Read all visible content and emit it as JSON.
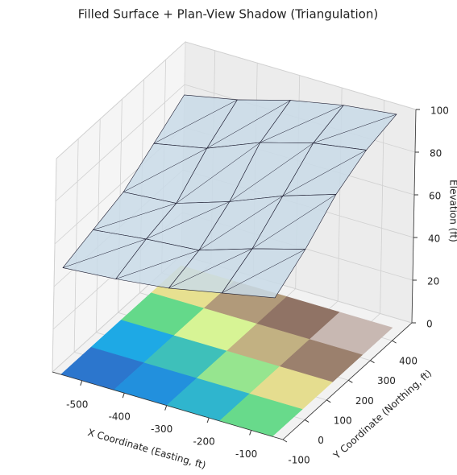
{
  "chart_data": {
    "type": "surface3d",
    "title": "Filled Surface + Plan-View Shadow (Triangulation)",
    "xlabel": "X Coordinate (Easting, ft)",
    "ylabel": "Y Coordinate (Northing, ft)",
    "zlabel": "Elevation (ft)",
    "x": [
      -550,
      -425,
      -300,
      -175,
      -50
    ],
    "y": [
      -100,
      37.5,
      175,
      312.5,
      450
    ],
    "z": [
      [
        50,
        52,
        55,
        60,
        65
      ],
      [
        55,
        58,
        60,
        68,
        75
      ],
      [
        60,
        62,
        70,
        80,
        88
      ],
      [
        70,
        75,
        85,
        92,
        96
      ],
      [
        80,
        85,
        92,
        97,
        100
      ]
    ],
    "xlim": [
      -570,
      -25
    ],
    "ylim": [
      -100,
      490
    ],
    "zlim": [
      0,
      100
    ],
    "xticks": [
      -500,
      -400,
      -300,
      -200,
      -100
    ],
    "yticks": [
      -100,
      0,
      100,
      200,
      300,
      400
    ],
    "zticks": [
      0,
      20,
      40,
      60,
      80,
      100
    ],
    "surface_color": "#c9dbe8",
    "edge_color": "#1a1a2e",
    "colormap": [
      "#3a4fb5",
      "#1aa6ea",
      "#62d98a",
      "#fcfc98",
      "#b59f7d",
      "#8f7265",
      "#f6f1f1"
    ],
    "grid": true
  }
}
